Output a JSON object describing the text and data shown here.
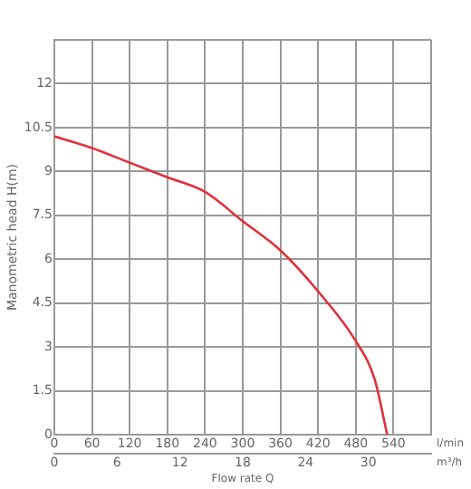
{
  "chart_data": {
    "type": "line",
    "xlabel": "Flow rate Q",
    "ylabel": "Manometric head H(m)",
    "x": [
      0,
      60,
      120,
      180,
      240,
      300,
      360,
      420,
      480,
      510,
      530
    ],
    "series": [
      {
        "color": "#e0303a",
        "values": [
          10.2,
          9.8,
          9.3,
          8.8,
          8.3,
          7.3,
          6.3,
          4.9,
          3.2,
          1.9,
          0
        ]
      }
    ],
    "xlim": [
      0,
      600
    ],
    "xticks": [
      0,
      60,
      120,
      180,
      240,
      300,
      360,
      420,
      480,
      540,
      {
        "value": 600,
        "label": null
      }
    ],
    "x2lim": [
      0,
      36
    ],
    "x2ticks": [
      0,
      6,
      12,
      18,
      24,
      30
    ],
    "ylim": [
      0,
      13.5
    ],
    "yticks": [
      0,
      1.5,
      3,
      4.5,
      6,
      7.5,
      9,
      10.5,
      12,
      {
        "value": 13.5,
        "label": null
      }
    ],
    "annotations": [
      "l/min",
      "m³/h"
    ],
    "grid": true,
    "legend": false,
    "marker": "none",
    "line_style": "solid"
  }
}
